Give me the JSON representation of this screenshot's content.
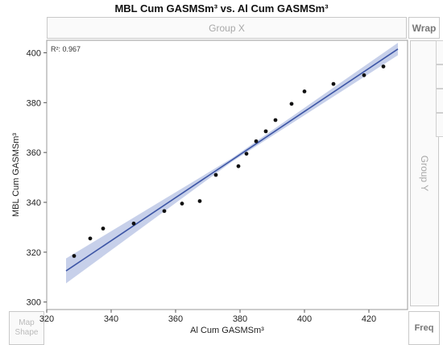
{
  "window": {
    "title": "MBL Cum GASMSm³  vs. Al Cum GASMSm³"
  },
  "drop_zones": {
    "group_x": "Group X",
    "wrap": "Wrap",
    "group_y": "Group Y",
    "map_shape": "Map\nShape",
    "freq": "Freq"
  },
  "chart_data": {
    "type": "scatter",
    "title": "MBL Cum GASMSm³  vs. Al Cum GASMSm³",
    "xlabel": "Al Cum GASMSm³",
    "ylabel": "MBL Cum GASMSm³",
    "annotation": "R²: 0.967",
    "xlim": [
      320,
      432
    ],
    "ylim": [
      297,
      405
    ],
    "xticks": [
      320,
      340,
      360,
      380,
      400,
      420
    ],
    "yticks": [
      300,
      320,
      340,
      360,
      380,
      400
    ],
    "points": [
      {
        "x": 328.5,
        "y": 318.5
      },
      {
        "x": 333.5,
        "y": 325.5
      },
      {
        "x": 337.5,
        "y": 329.5
      },
      {
        "x": 347.0,
        "y": 331.5
      },
      {
        "x": 356.5,
        "y": 336.5
      },
      {
        "x": 362.0,
        "y": 339.5
      },
      {
        "x": 367.5,
        "y": 340.5
      },
      {
        "x": 372.5,
        "y": 351.0
      },
      {
        "x": 379.5,
        "y": 354.5
      },
      {
        "x": 382.0,
        "y": 359.5
      },
      {
        "x": 385.0,
        "y": 364.5
      },
      {
        "x": 388.0,
        "y": 368.5
      },
      {
        "x": 391.0,
        "y": 373.0
      },
      {
        "x": 396.0,
        "y": 379.5
      },
      {
        "x": 400.0,
        "y": 384.5
      },
      {
        "x": 409.0,
        "y": 387.5
      },
      {
        "x": 418.5,
        "y": 391.0
      },
      {
        "x": 424.5,
        "y": 394.5
      }
    ],
    "fit_line": {
      "x": [
        326,
        429
      ],
      "y": [
        312.5,
        401.5
      ]
    },
    "confidence_band": {
      "x": [
        326,
        377.5,
        429
      ],
      "upper": [
        317.5,
        357.7,
        404.0
      ],
      "lower": [
        307.5,
        356.3,
        399.0
      ]
    },
    "grid": false,
    "colors": {
      "points": "#111111",
      "fit_line": "#3d56a6",
      "band": "#c7d0ea"
    }
  }
}
